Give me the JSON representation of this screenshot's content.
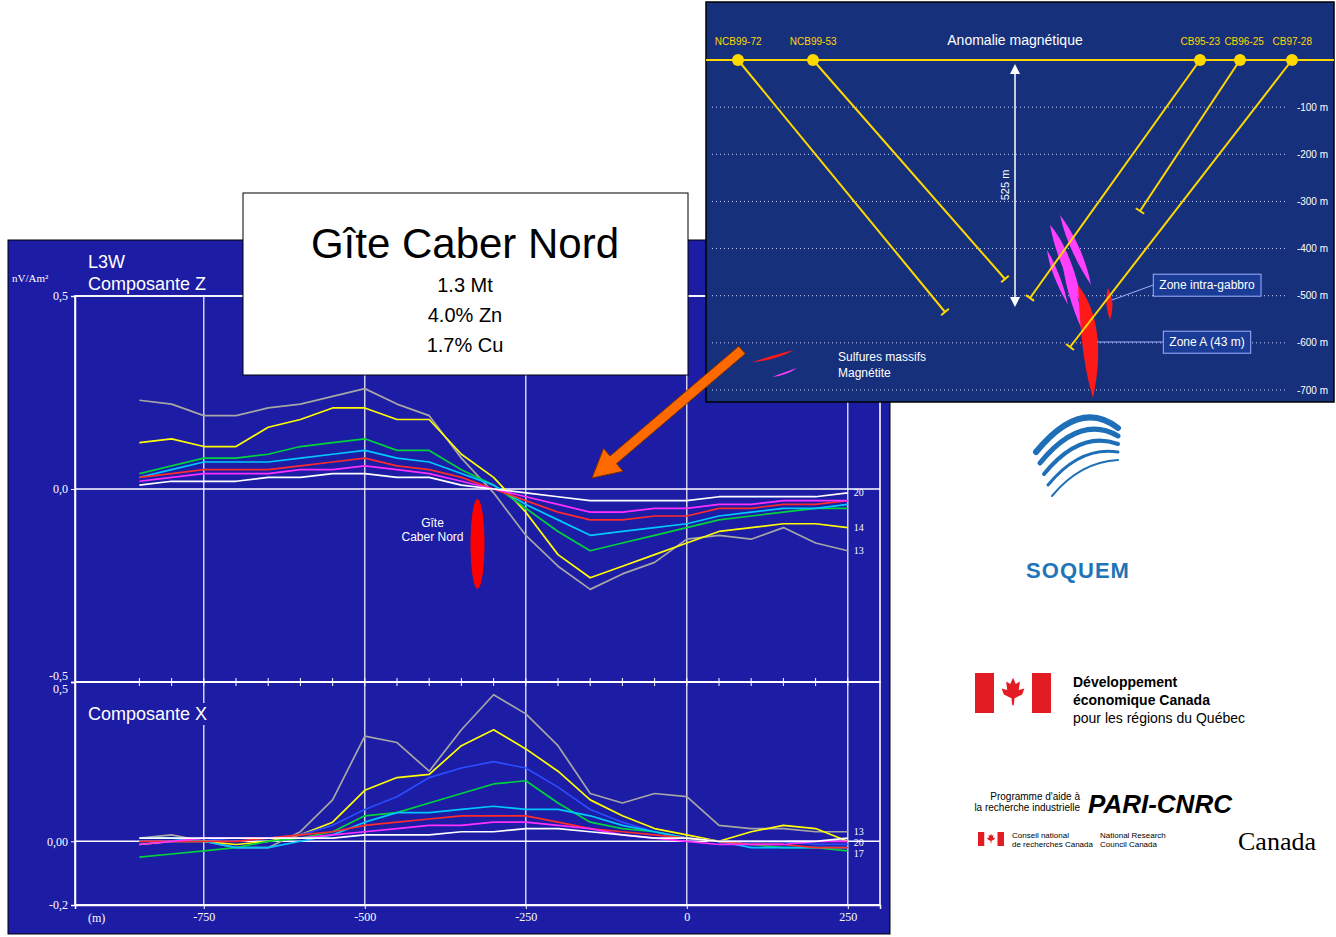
{
  "title_box": {
    "title": "Gîte Caber Nord",
    "lines": [
      "1.3 Mt",
      "4.0% Zn",
      "1.7% Cu"
    ]
  },
  "chart_data": [
    {
      "type": "line",
      "title": "L3W",
      "subtitle": "Composante Z",
      "ylabel": "nV/Am²",
      "x": [
        -850,
        -800,
        -750,
        -700,
        -650,
        -600,
        -550,
        -500,
        -450,
        -400,
        -350,
        -300,
        -250,
        -200,
        -150,
        -100,
        -50,
        0,
        50,
        100,
        150,
        200,
        250
      ],
      "xlim": [
        -950,
        300
      ],
      "xticks": [
        -750,
        -500,
        -250,
        0,
        250
      ],
      "ylim": [
        -0.5,
        0.5
      ],
      "yticks": [
        {
          "value": 0.5,
          "label": "0,5"
        },
        {
          "value": 0,
          "label": "0,0"
        },
        {
          "value": -0.5,
          "label": "-0,5"
        }
      ],
      "grid": true,
      "tick_labels": "y",
      "series": [
        {
          "name": "13",
          "color": "#a6a6a6",
          "values": [
            0.23,
            0.22,
            0.19,
            0.19,
            0.21,
            0.22,
            0.24,
            0.26,
            0.22,
            0.19,
            0.08,
            -0.01,
            -0.12,
            -0.2,
            -0.26,
            -0.22,
            -0.19,
            -0.13,
            -0.12,
            -0.13,
            -0.1,
            -0.14,
            -0.16
          ]
        },
        {
          "name": "14",
          "color": "#ffff00",
          "values": [
            0.12,
            0.13,
            0.11,
            0.11,
            0.16,
            0.18,
            0.21,
            0.21,
            0.18,
            0.18,
            0.09,
            0.03,
            -0.06,
            -0.17,
            -0.23,
            -0.2,
            -0.17,
            -0.14,
            -0.11,
            -0.1,
            -0.09,
            -0.09,
            -0.1
          ]
        },
        {
          "color": "#00d23c",
          "values": [
            0.04,
            0.06,
            0.08,
            0.08,
            0.09,
            0.11,
            0.12,
            0.13,
            0.1,
            0.1,
            0.05,
            0.01,
            -0.05,
            -0.11,
            -0.16,
            -0.14,
            -0.12,
            -0.1,
            -0.08,
            -0.07,
            -0.06,
            -0.05,
            -0.05
          ]
        },
        {
          "color": "#00c8ff",
          "values": [
            0.03,
            0.05,
            0.07,
            0.07,
            0.07,
            0.08,
            0.09,
            0.1,
            0.08,
            0.07,
            0.04,
            0.01,
            -0.04,
            -0.08,
            -0.12,
            -0.11,
            -0.1,
            -0.09,
            -0.07,
            -0.06,
            -0.05,
            -0.05,
            -0.04
          ]
        },
        {
          "color": "#ff2a2a",
          "values": [
            0.03,
            0.04,
            0.05,
            0.05,
            0.05,
            0.06,
            0.07,
            0.08,
            0.06,
            0.05,
            0.03,
            0,
            -0.03,
            -0.06,
            -0.08,
            -0.08,
            -0.07,
            -0.07,
            -0.05,
            -0.05,
            -0.04,
            -0.04,
            -0.03
          ]
        },
        {
          "color": "#ff30ff",
          "values": [
            0.02,
            0.03,
            0.04,
            0.04,
            0.04,
            0.05,
            0.05,
            0.06,
            0.05,
            0.04,
            0.02,
            0,
            -0.02,
            -0.04,
            -0.06,
            -0.06,
            -0.05,
            -0.05,
            -0.04,
            -0.04,
            -0.03,
            -0.03,
            -0.03
          ]
        },
        {
          "name": "20",
          "color": "#ffffff",
          "values": [
            0.01,
            0.02,
            0.02,
            0.02,
            0.03,
            0.03,
            0.04,
            0.04,
            0.03,
            0.03,
            0.01,
            0,
            -0.01,
            -0.02,
            -0.03,
            -0.03,
            -0.03,
            -0.03,
            -0.02,
            -0.02,
            -0.02,
            -0.02,
            -0.01
          ]
        }
      ],
      "annotations": [
        {
          "text": "Gîte Caber Nord",
          "x": -325
        }
      ]
    },
    {
      "type": "line",
      "title": "Composante X",
      "xlabel": "(m)",
      "x": [
        -850,
        -800,
        -750,
        -700,
        -650,
        -600,
        -550,
        -500,
        -450,
        -400,
        -350,
        -300,
        -250,
        -200,
        -150,
        -100,
        -50,
        0,
        50,
        100,
        150,
        200,
        250
      ],
      "xlim": [
        -950,
        300
      ],
      "xticks": [
        -750,
        -500,
        -250,
        0,
        250
      ],
      "ylim": [
        -0.2,
        0.5
      ],
      "yticks": [
        {
          "value": 0.5,
          "label": "0,5"
        },
        {
          "value": 0,
          "label": "0,00"
        },
        {
          "value": -0.2,
          "label": "-0,2"
        }
      ],
      "grid": true,
      "series": [
        {
          "name": "13",
          "color": "#a6a6a6",
          "values": [
            0.01,
            0.02,
            0,
            -0.02,
            -0.02,
            0.03,
            0.13,
            0.33,
            0.31,
            0.22,
            0.35,
            0.46,
            0.4,
            0.3,
            0.15,
            0.12,
            0.15,
            0.14,
            0.05,
            0.04,
            0.04,
            0.03,
            0.03
          ]
        },
        {
          "color": "#ffff00",
          "values": [
            -0.01,
            0,
            0,
            -0.01,
            0,
            0.02,
            0.06,
            0.16,
            0.2,
            0.21,
            0.3,
            0.35,
            0.29,
            0.22,
            0.13,
            0.08,
            0.04,
            0.02,
            0,
            0.03,
            0.05,
            0.04,
            0
          ]
        },
        {
          "color": "#2a4dff",
          "values": [
            0,
            0,
            0.01,
            0,
            0.01,
            0.02,
            0.05,
            0.1,
            0.14,
            0.2,
            0.23,
            0.25,
            0.23,
            0.17,
            0.1,
            0.06,
            0.03,
            0.01,
            0,
            0,
            0,
            -0.01,
            -0.01
          ]
        },
        {
          "color": "#00d23c",
          "values": [
            -0.05,
            -0.04,
            -0.03,
            -0.02,
            0,
            0.01,
            0.03,
            0.08,
            0.09,
            0.12,
            0.15,
            0.18,
            0.19,
            0.12,
            0.06,
            0.04,
            0.03,
            0.01,
            0,
            -0.01,
            -0.02,
            -0.02,
            -0.03
          ]
        },
        {
          "name": "17",
          "color": "#00c8ff",
          "values": [
            0.01,
            0.01,
            0,
            -0.02,
            -0.02,
            0,
            0.02,
            0.06,
            0.09,
            0.09,
            0.1,
            0.11,
            0.1,
            0.1,
            0.08,
            0.05,
            0.03,
            0.01,
            0,
            -0.02,
            -0.02,
            -0.02,
            -0.02
          ]
        },
        {
          "color": "#ff2a2a",
          "values": [
            0,
            0,
            0,
            0,
            0.01,
            0.02,
            0.03,
            0.05,
            0.06,
            0.07,
            0.08,
            0.08,
            0.08,
            0.06,
            0.04,
            0.03,
            0.02,
            0.01,
            0,
            -0.01,
            -0.01,
            -0.02,
            -0.02
          ]
        },
        {
          "color": "#ff30ff",
          "values": [
            -0.01,
            0,
            0.01,
            0.01,
            0.01,
            0.01,
            0.02,
            0.03,
            0.04,
            0.05,
            0.05,
            0.06,
            0.06,
            0.05,
            0.04,
            0.02,
            0.01,
            0,
            -0.01,
            -0.01,
            -0.01,
            0,
            0
          ]
        },
        {
          "name": "20",
          "color": "#ffffff",
          "values": [
            0.01,
            0.01,
            0.01,
            0.01,
            0.01,
            0.01,
            0.01,
            0.02,
            0.02,
            0.02,
            0.03,
            0.03,
            0.04,
            0.04,
            0.03,
            0.02,
            0.01,
            0.01,
            0,
            0,
            0,
            0,
            0.01
          ]
        }
      ]
    }
  ],
  "section": {
    "title": "Anomalie magnétique",
    "holes": [
      "NCB99-72",
      "NCB99-53",
      "CB95-23",
      "CB96-25",
      "CB97-28"
    ],
    "depth_lim": [
      0,
      -700
    ],
    "depth_ticks": [
      {
        "value": -100,
        "label": "-100 m"
      },
      {
        "value": -200,
        "label": "-200 m"
      },
      {
        "value": -300,
        "label": "-300 m"
      },
      {
        "value": -400,
        "label": "-400 m"
      },
      {
        "value": -500,
        "label": "-500 m"
      },
      {
        "value": -600,
        "label": "-600 m"
      },
      {
        "value": -700,
        "label": "-700 m"
      }
    ],
    "span_label": "525 m",
    "key": [
      {
        "label": "Sulfures massifs",
        "color": "#ff1a1a"
      },
      {
        "label": "Magnétite",
        "color": "#ff40ff"
      }
    ],
    "zones": [
      "Zone intra-gabbro",
      "Zone A (43 m)"
    ]
  },
  "logos": {
    "soquem": "SOQUEM",
    "dec": [
      "Développement",
      "économique Canada",
      "pour les régions du Québec"
    ],
    "pari": {
      "program": [
        "Programme d'aide à",
        "la recherche industrielle"
      ],
      "name": "PARI-CNRC"
    },
    "nrc": {
      "fr": [
        "Conseil national",
        "de recherches Canada"
      ],
      "en": [
        "National Research",
        "Council Canada"
      ],
      "wordmark": "Canada"
    }
  }
}
